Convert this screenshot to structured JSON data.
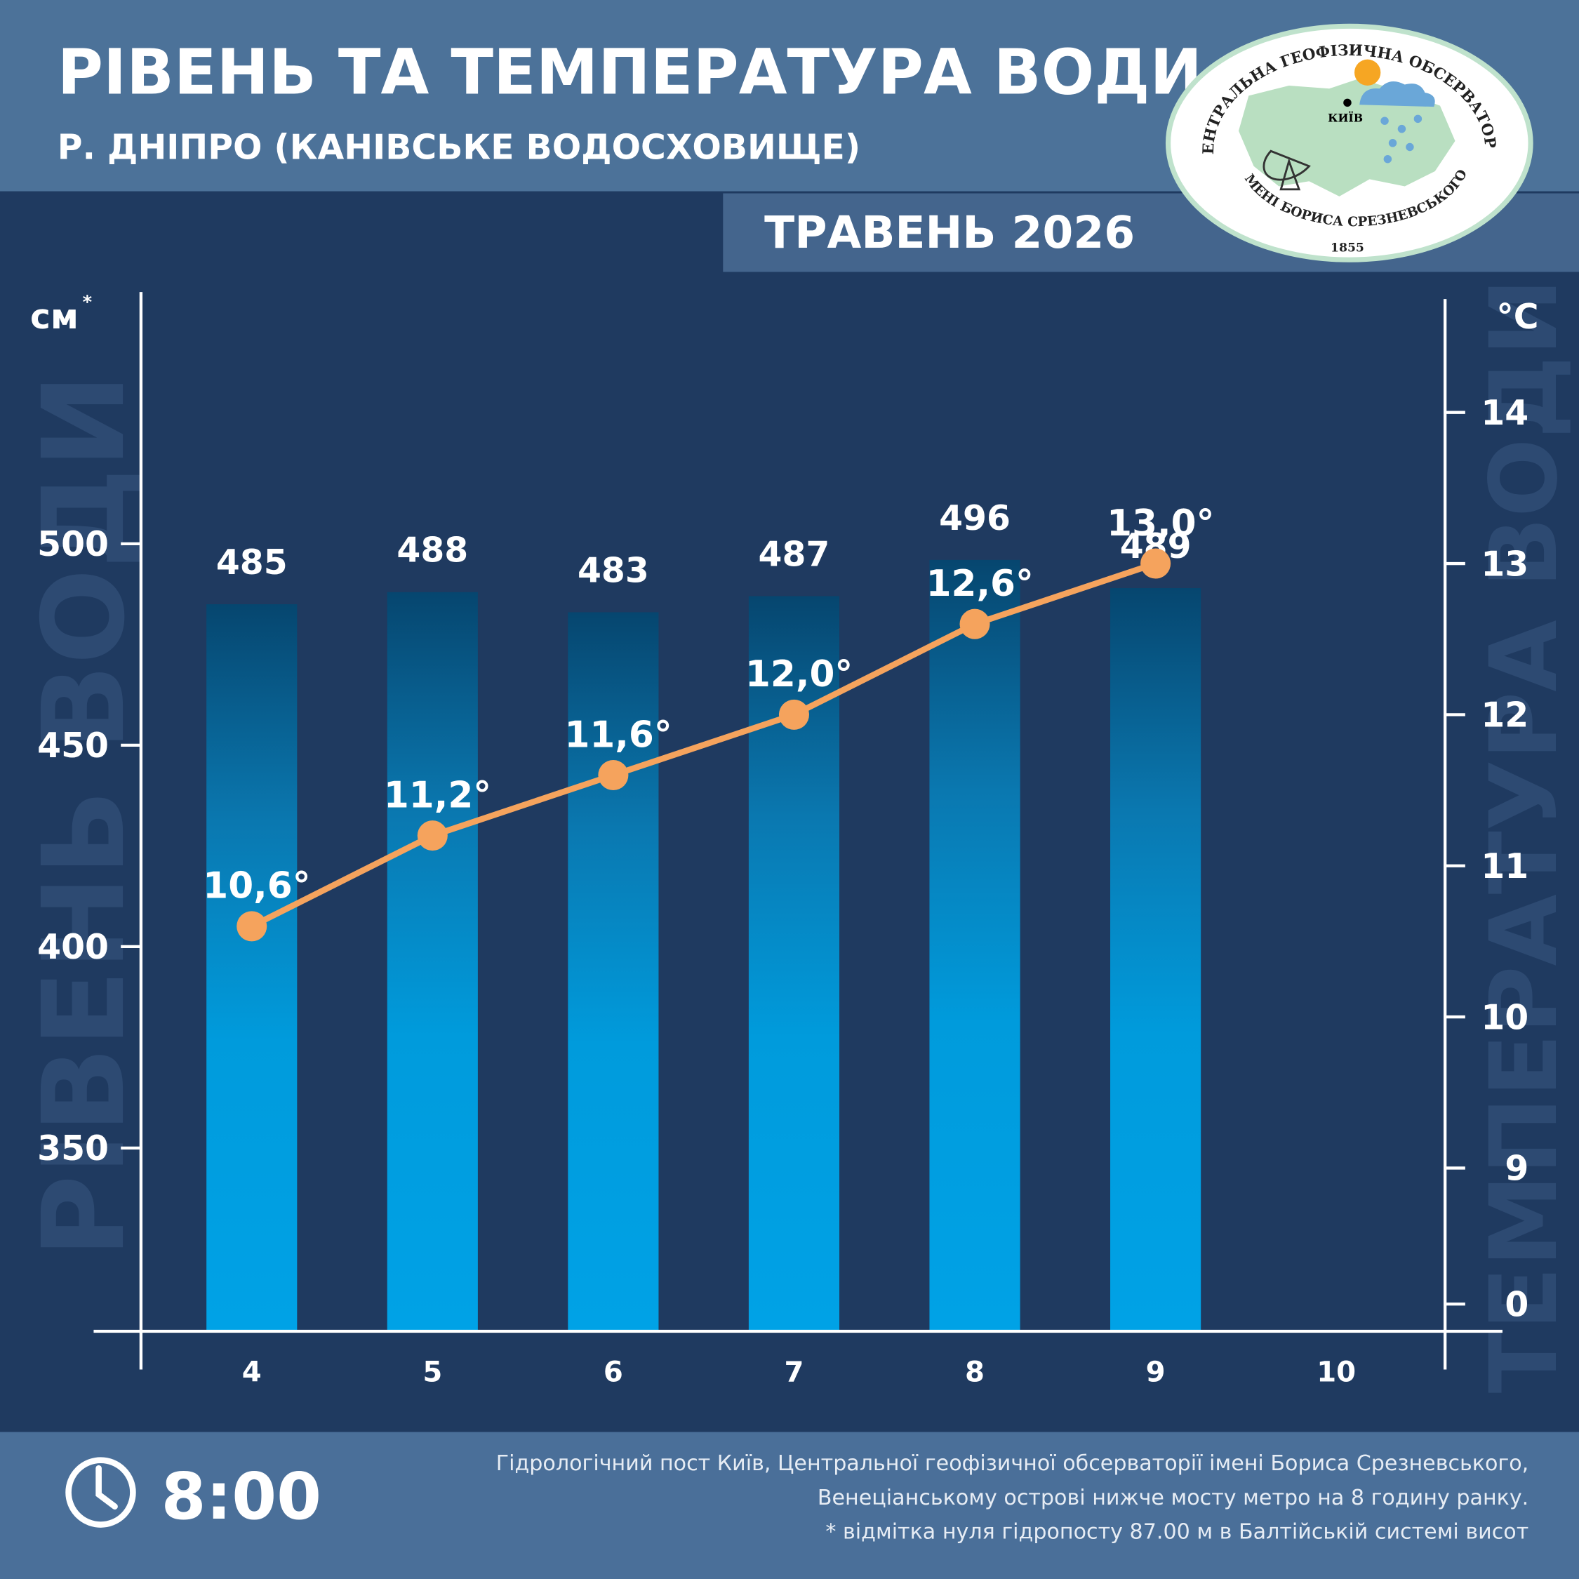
{
  "header": {
    "title": "РІВЕНЬ ТА ТЕМПЕРАТУРА ВОДИ",
    "subtitle": "Р. ДНІПРО (КАНІВСЬКЕ ВОДОСХОВИЩЕ)",
    "period": "ТРАВЕНЬ 2026"
  },
  "logo": {
    "top_text": "ЦЕНТРАЛЬНА ГЕОФІЗИЧНА ОБСЕРВАТОРІЯ",
    "bottom_text": "ІМЕНІ БОРИСА СРЕЗНЕВСЬКОГО",
    "year": "1855",
    "city": "КИЇВ"
  },
  "footer": {
    "time": "8:00",
    "notes": [
      "Гідрологічний пост Київ, Центральної геофізичної обсерваторії імені Бориса Срезневського,",
      "Венеціанському острові нижче мосту метро  на 8 годину ранку.",
      "* відмітка нуля гідропосту 87.00 м в Балтійській системі висот"
    ]
  },
  "chart_data": {
    "type": "bar",
    "categories": [
      "4",
      "5",
      "6",
      "7",
      "8",
      "9",
      "10"
    ],
    "series": [
      {
        "type": "bar",
        "color": "#00a0e2",
        "values": [
          485,
          488,
          483,
          487,
          496,
          489,
          null
        ]
      },
      {
        "type": "line",
        "axis": "y2",
        "color": "#f5a35d",
        "values": [
          10.6,
          11.2,
          11.6,
          12.0,
          12.6,
          13.0,
          null
        ],
        "value_labels": [
          "10,6°",
          "11,2°",
          "11,6°",
          "12,0°",
          "12,6°",
          "13,0°",
          null
        ]
      }
    ],
    "y_label": "РІВЕНЬ ВОДИ",
    "y_unit": "см",
    "y_unit_mark": "*",
    "y2_label": "ТЕМПЕРАТУРА ВОДИ",
    "y2_unit": "°C",
    "ylim": [
      304.5,
      562.5
    ],
    "yticks": [
      350,
      400,
      450,
      500
    ],
    "y2lim": [
      7.92,
      14.75
    ],
    "y2ticks": [
      0,
      9,
      10,
      11,
      12,
      13,
      14
    ],
    "y2_break": true,
    "grid": false
  }
}
